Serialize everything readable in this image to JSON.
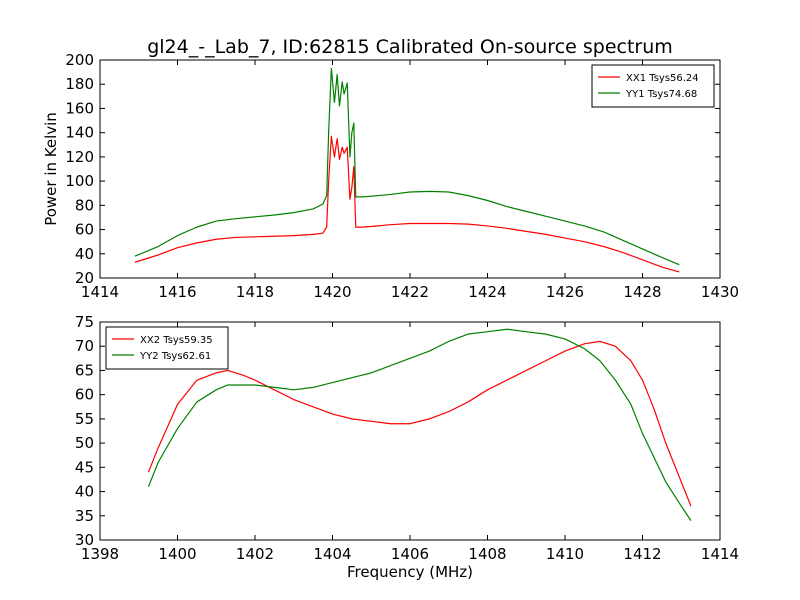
{
  "figure": {
    "title": "gl24_-_Lab_7, ID:62815 Calibrated On-source spectrum"
  },
  "chart_data": [
    {
      "type": "line",
      "title": "gl24_-_Lab_7, ID:62815 Calibrated On-source spectrum",
      "xlabel": "",
      "ylabel": "Power in Kelvin",
      "xlim": [
        1414,
        1430
      ],
      "ylim": [
        20,
        200
      ],
      "xticks": [
        1414,
        1416,
        1418,
        1420,
        1422,
        1424,
        1426,
        1428,
        1430
      ],
      "yticks": [
        20,
        40,
        60,
        80,
        100,
        120,
        140,
        160,
        180,
        200
      ],
      "legend_position": "top-right",
      "grid": false,
      "series": [
        {
          "name": "XX1 Tsys56.24",
          "color": "#ff0000",
          "x": [
            1414.9,
            1415.5,
            1416,
            1416.5,
            1417,
            1417.5,
            1418,
            1418.5,
            1419,
            1419.5,
            1419.75,
            1419.85,
            1419.9,
            1419.97,
            1420.05,
            1420.12,
            1420.18,
            1420.25,
            1420.3,
            1420.38,
            1420.45,
            1420.5,
            1420.55,
            1420.6,
            1420.8,
            1421.5,
            1422,
            1422.5,
            1423,
            1423.5,
            1424,
            1424.5,
            1425,
            1425.5,
            1426,
            1426.5,
            1427,
            1427.5,
            1428,
            1428.5,
            1428.95
          ],
          "y": [
            33,
            39,
            45,
            49,
            52,
            53.5,
            54,
            54.5,
            55,
            56,
            57,
            62,
            100,
            137,
            120,
            135,
            118,
            128,
            123,
            128,
            85,
            95,
            112,
            62,
            62,
            64,
            65,
            65,
            65,
            64.5,
            63,
            61,
            58.5,
            56,
            53,
            50,
            46,
            41,
            35,
            29,
            25
          ]
        },
        {
          "name": "YY1 Tsys74.68",
          "color": "#008000",
          "x": [
            1414.9,
            1415.5,
            1416,
            1416.5,
            1417,
            1417.5,
            1418,
            1418.5,
            1419,
            1419.5,
            1419.75,
            1419.85,
            1419.9,
            1419.97,
            1420.05,
            1420.12,
            1420.18,
            1420.25,
            1420.3,
            1420.38,
            1420.45,
            1420.5,
            1420.55,
            1420.6,
            1420.8,
            1421.5,
            1422,
            1422.5,
            1423,
            1423.5,
            1424,
            1424.5,
            1425,
            1425.5,
            1426,
            1426.5,
            1427,
            1427.5,
            1428,
            1428.5,
            1428.95
          ],
          "y": [
            38,
            46,
            55,
            62,
            67,
            69,
            70.5,
            72,
            74,
            77,
            81,
            88,
            140,
            193,
            165,
            188,
            162,
            182,
            172,
            181,
            120,
            140,
            148,
            87,
            87,
            89,
            91,
            91.5,
            91,
            88,
            84,
            79,
            75,
            71,
            67,
            63,
            58,
            51,
            44,
            37,
            31
          ]
        }
      ]
    },
    {
      "type": "line",
      "title": "",
      "xlabel": "Frequency (MHz)",
      "ylabel": "",
      "xlim": [
        1398,
        1414
      ],
      "ylim": [
        30,
        75
      ],
      "xticks": [
        1398,
        1400,
        1402,
        1404,
        1406,
        1408,
        1410,
        1412,
        1414
      ],
      "yticks": [
        30,
        35,
        40,
        45,
        50,
        55,
        60,
        65,
        70,
        75
      ],
      "legend_position": "top-left",
      "grid": false,
      "series": [
        {
          "name": "XX2 Tsys59.35",
          "color": "#ff0000",
          "x": [
            1399.25,
            1399.5,
            1400,
            1400.5,
            1401,
            1401.3,
            1401.7,
            1402,
            1402.5,
            1403,
            1403.5,
            1404,
            1404.5,
            1405,
            1405.5,
            1406,
            1406.5,
            1407,
            1407.5,
            1408,
            1408.5,
            1409,
            1409.5,
            1410,
            1410.5,
            1410.9,
            1411.3,
            1411.7,
            1412,
            1412.3,
            1412.6,
            1413,
            1413.25
          ],
          "y": [
            44,
            49,
            58,
            63,
            64.5,
            65,
            64,
            63,
            61,
            59,
            57.5,
            56,
            55,
            54.5,
            54,
            54,
            55,
            56.5,
            58.5,
            61,
            63,
            65,
            67,
            69,
            70.5,
            71,
            70,
            67,
            63,
            57,
            50,
            42,
            37
          ]
        },
        {
          "name": "YY2 Tsys62.61",
          "color": "#008000",
          "x": [
            1399.25,
            1399.5,
            1400,
            1400.5,
            1401,
            1401.3,
            1401.7,
            1402,
            1402.5,
            1403,
            1403.5,
            1404,
            1404.5,
            1405,
            1405.5,
            1406,
            1406.5,
            1407,
            1407.5,
            1408,
            1408.5,
            1409,
            1409.5,
            1410,
            1410.5,
            1410.9,
            1411.3,
            1411.7,
            1412,
            1412.3,
            1412.6,
            1413,
            1413.25
          ],
          "y": [
            41,
            46,
            53,
            58.5,
            61,
            62,
            62,
            62,
            61.5,
            61,
            61.5,
            62.5,
            63.5,
            64.5,
            66,
            67.5,
            69,
            71,
            72.5,
            73,
            73.5,
            73,
            72.5,
            71.5,
            69.5,
            67,
            63,
            58,
            52,
            47,
            42,
            37,
            34
          ]
        }
      ]
    }
  ]
}
